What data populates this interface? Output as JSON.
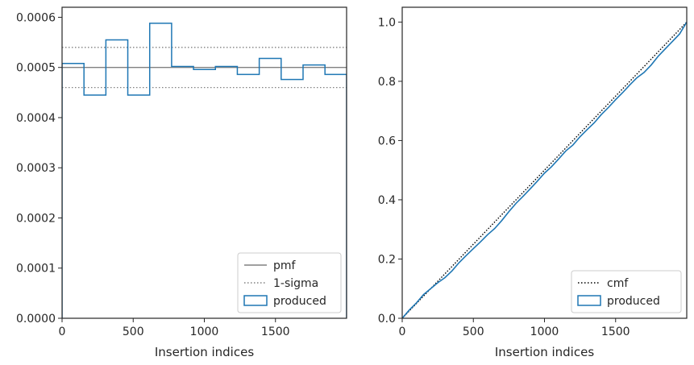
{
  "chart_data": [
    {
      "type": "line",
      "xlabel": "Insertion indices",
      "ylabel": "",
      "xlim": [
        0,
        2000
      ],
      "ylim": [
        0,
        0.00062
      ],
      "xticks": [
        0,
        500,
        1000,
        1500
      ],
      "xtick_labels": [
        "0",
        "500",
        "1000",
        "1500"
      ],
      "yticks": [
        0,
        0.0001,
        0.0002,
        0.0003,
        0.0004,
        0.0005,
        0.0006
      ],
      "ytick_labels": [
        "0.0000",
        "0.0001",
        "0.0002",
        "0.0003",
        "0.0004",
        "0.0005",
        "0.0006"
      ],
      "legend_position": "lower-right",
      "grid": false,
      "series": [
        {
          "name": "pmf",
          "kind": "hline",
          "y": 0.0005,
          "color": "#808080",
          "style": "solid"
        },
        {
          "name": "1-sigma",
          "kind": "hlines",
          "y": [
            0.00054,
            0.00046
          ],
          "color": "#808080",
          "style": "dotted"
        },
        {
          "name": "produced",
          "kind": "step-histogram",
          "color": "#1f77b4",
          "bin_edges": [
            0,
            154,
            308,
            462,
            616,
            770,
            924,
            1078,
            1232,
            1386,
            1540,
            1694,
            1848,
            2000
          ],
          "values": [
            0.000508,
            0.000445,
            0.000555,
            0.000445,
            0.000588,
            0.000502,
            0.000496,
            0.000502,
            0.000486,
            0.000518,
            0.000476,
            0.000505,
            0.000486
          ]
        }
      ]
    },
    {
      "type": "line",
      "xlabel": "Insertion indices",
      "ylabel": "",
      "xlim": [
        0,
        2000
      ],
      "ylim": [
        0,
        1.05
      ],
      "xticks": [
        0,
        500,
        1000,
        1500
      ],
      "xtick_labels": [
        "0",
        "500",
        "1000",
        "1500"
      ],
      "yticks": [
        0,
        0.2,
        0.4,
        0.6,
        0.8,
        1.0
      ],
      "ytick_labels": [
        "0.0",
        "0.2",
        "0.4",
        "0.6",
        "0.8",
        "1.0"
      ],
      "legend_position": "lower-right",
      "grid": false,
      "series": [
        {
          "name": "cmf",
          "kind": "line",
          "x": [
            0,
            2000
          ],
          "y": [
            0,
            1.0
          ],
          "color": "#000000",
          "style": "dotted"
        },
        {
          "name": "produced",
          "kind": "step-cumulative",
          "color": "#1f77b4",
          "x": [
            0,
            50,
            100,
            150,
            200,
            250,
            300,
            350,
            400,
            450,
            500,
            550,
            600,
            650,
            700,
            750,
            800,
            850,
            900,
            950,
            1000,
            1050,
            1100,
            1150,
            1200,
            1250,
            1300,
            1350,
            1400,
            1450,
            1500,
            1550,
            1600,
            1650,
            1700,
            1750,
            1800,
            1850,
            1900,
            1950,
            2000
          ],
          "y": [
            0,
            0.028,
            0.052,
            0.08,
            0.1,
            0.12,
            0.137,
            0.16,
            0.188,
            0.212,
            0.235,
            0.258,
            0.282,
            0.303,
            0.33,
            0.36,
            0.388,
            0.412,
            0.437,
            0.463,
            0.49,
            0.512,
            0.538,
            0.565,
            0.585,
            0.613,
            0.637,
            0.66,
            0.688,
            0.712,
            0.738,
            0.762,
            0.788,
            0.812,
            0.83,
            0.855,
            0.885,
            0.91,
            0.935,
            0.96,
            1.0
          ]
        }
      ]
    }
  ]
}
